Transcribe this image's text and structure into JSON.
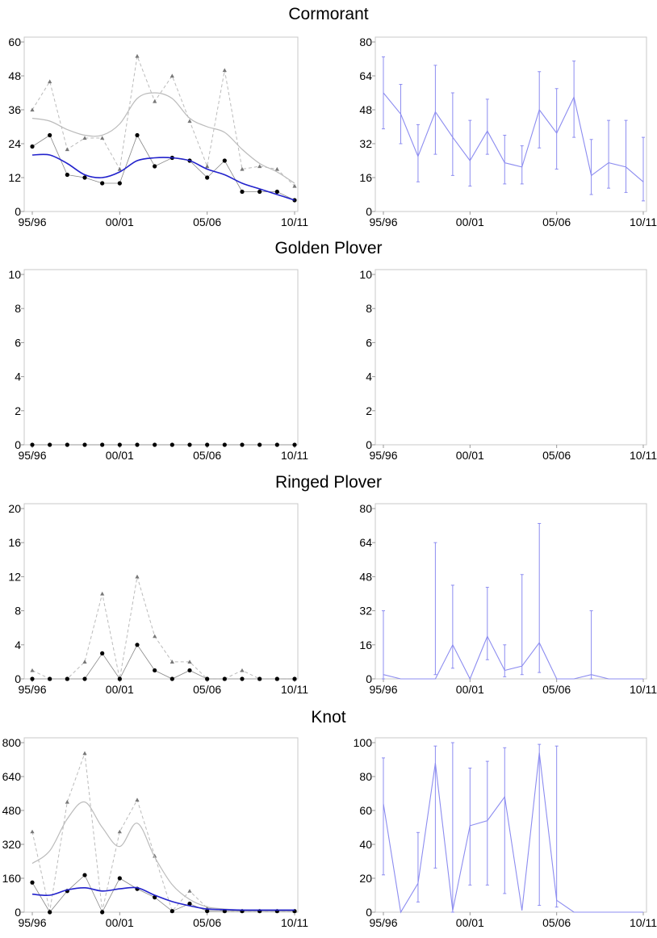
{
  "colors": {
    "black": "#000000",
    "grey": "#888888",
    "light_grey": "#bbbbbb",
    "blue": "#2222cc",
    "light_blue": "#8c8cf0",
    "axis": "#c8c8c8"
  },
  "x_tick_labels": [
    "95/96",
    "00/01",
    "05/06",
    "10/11"
  ],
  "species": [
    {
      "title": "Cormorant"
    },
    {
      "title": "Golden Plover"
    },
    {
      "title": "Ringed Plover"
    },
    {
      "title": "Knot"
    }
  ],
  "chart_data": [
    {
      "type": "scatter",
      "species": "Cormorant",
      "panel": "left",
      "x": [
        "95/96",
        "96/97",
        "97/98",
        "98/99",
        "99/00",
        "00/01",
        "01/02",
        "02/03",
        "03/04",
        "04/05",
        "05/06",
        "06/07",
        "07/08",
        "08/09",
        "09/10",
        "10/11"
      ],
      "ylim": [
        0,
        60
      ],
      "yticks": [
        0,
        12,
        24,
        36,
        48,
        60
      ],
      "xtick_labels": [
        "95/96",
        "00/01",
        "05/06",
        "10/11"
      ],
      "series": [
        {
          "values": [
            36,
            46,
            22,
            26,
            26,
            15,
            55,
            39,
            48,
            32,
            16,
            50,
            15,
            16,
            15,
            9
          ],
          "marker": "triangle",
          "style": "dashed-grey"
        },
        {
          "values": [
            23,
            27,
            13,
            12,
            10,
            10,
            27,
            16,
            19,
            18,
            12,
            18,
            7,
            7,
            7,
            4
          ],
          "marker": "dot",
          "style": "thin-black"
        },
        {
          "values": [
            33,
            32,
            29,
            27,
            27,
            31,
            40,
            42,
            40,
            33,
            30,
            28,
            22,
            17,
            14,
            10
          ],
          "marker": "none",
          "style": "smooth-grey"
        },
        {
          "values": [
            20,
            20,
            17,
            13,
            12,
            14,
            18,
            19,
            19,
            18,
            15,
            13,
            10,
            8,
            6,
            4
          ],
          "marker": "none",
          "style": "smooth-blue"
        }
      ]
    },
    {
      "type": "line",
      "species": "Cormorant",
      "panel": "right",
      "x": [
        "95/96",
        "96/97",
        "97/98",
        "98/99",
        "99/00",
        "00/01",
        "01/02",
        "02/03",
        "03/04",
        "04/05",
        "05/06",
        "06/07",
        "07/08",
        "08/09",
        "09/10",
        "10/11"
      ],
      "ylim": [
        0,
        80
      ],
      "yticks": [
        0,
        16,
        32,
        48,
        64,
        80
      ],
      "xtick_labels": [
        "95/96",
        "00/01",
        "05/06",
        "10/11"
      ],
      "series": [
        {
          "values": [
            56,
            46,
            26,
            47,
            35,
            24,
            38,
            23,
            21,
            48,
            37,
            54,
            17,
            23,
            21,
            14
          ],
          "lower": [
            39,
            32,
            14,
            27,
            17,
            12,
            27,
            13,
            13,
            30,
            20,
            35,
            8,
            11,
            9,
            5
          ],
          "upper": [
            73,
            60,
            41,
            69,
            56,
            43,
            53,
            36,
            31,
            66,
            58,
            71,
            34,
            43,
            43,
            35
          ]
        }
      ]
    },
    {
      "type": "scatter",
      "species": "Golden Plover",
      "panel": "left",
      "x": [
        "95/96",
        "96/97",
        "97/98",
        "98/99",
        "99/00",
        "00/01",
        "01/02",
        "02/03",
        "03/04",
        "04/05",
        "05/06",
        "06/07",
        "07/08",
        "08/09",
        "09/10",
        "10/11"
      ],
      "ylim": [
        0,
        10
      ],
      "yticks": [
        0,
        2,
        4,
        6,
        8,
        10
      ],
      "xtick_labels": [
        "95/96",
        "00/01",
        "05/06",
        "10/11"
      ],
      "series": [
        {
          "values": [
            0,
            0,
            0,
            0,
            0,
            0,
            0,
            0,
            0,
            0,
            0,
            0,
            0,
            0,
            0,
            0
          ],
          "marker": "dot",
          "style": "thin-black"
        }
      ]
    },
    {
      "type": "line",
      "species": "Golden Plover",
      "panel": "right",
      "x": [],
      "ylim": [
        0,
        10
      ],
      "yticks": [
        0,
        2,
        4,
        6,
        8,
        10
      ],
      "xtick_labels": [
        "95/96",
        "00/01",
        "05/06",
        "10/11"
      ],
      "series": []
    },
    {
      "type": "scatter",
      "species": "Ringed Plover",
      "panel": "left",
      "x": [
        "95/96",
        "96/97",
        "97/98",
        "98/99",
        "99/00",
        "00/01",
        "01/02",
        "02/03",
        "03/04",
        "04/05",
        "05/06",
        "06/07",
        "07/08",
        "08/09",
        "09/10",
        "10/11"
      ],
      "ylim": [
        0,
        20
      ],
      "yticks": [
        0,
        4,
        8,
        12,
        16,
        20
      ],
      "xtick_labels": [
        "95/96",
        "00/01",
        "05/06",
        "10/11"
      ],
      "series": [
        {
          "values": [
            1,
            0,
            0,
            2,
            10,
            0,
            12,
            5,
            2,
            2,
            0,
            0,
            1,
            0,
            0,
            0
          ],
          "marker": "triangle",
          "style": "dashed-grey"
        },
        {
          "values": [
            0,
            0,
            0,
            0,
            3,
            0,
            4,
            1,
            0,
            1,
            0,
            0,
            0,
            0,
            0,
            0
          ],
          "marker": "dot",
          "style": "thin-black"
        }
      ]
    },
    {
      "type": "line",
      "species": "Ringed Plover",
      "panel": "right",
      "x": [
        "95/96",
        "96/97",
        "97/98",
        "98/99",
        "99/00",
        "00/01",
        "01/02",
        "02/03",
        "03/04",
        "04/05",
        "05/06",
        "06/07",
        "07/08",
        "08/09",
        "09/10",
        "10/11"
      ],
      "ylim": [
        0,
        80
      ],
      "yticks": [
        0,
        16,
        32,
        48,
        64,
        80
      ],
      "xtick_labels": [
        "95/96",
        "00/01",
        "05/06",
        "10/11"
      ],
      "series": [
        {
          "values": [
            2,
            0,
            0,
            0,
            16,
            0,
            20,
            4,
            6,
            17,
            0,
            0,
            2,
            0,
            0,
            0
          ],
          "lower": [
            0,
            0,
            0,
            2,
            5,
            0,
            9,
            1,
            2,
            3,
            0,
            0,
            0,
            0,
            0,
            0
          ],
          "upper": [
            32,
            0,
            0,
            64,
            44,
            0,
            43,
            16,
            49,
            73,
            0,
            0,
            32,
            0,
            0,
            0
          ]
        }
      ]
    },
    {
      "type": "scatter",
      "species": "Knot",
      "panel": "left",
      "x": [
        "95/96",
        "96/97",
        "97/98",
        "98/99",
        "99/00",
        "00/01",
        "01/02",
        "02/03",
        "03/04",
        "04/05",
        "05/06",
        "06/07",
        "07/08",
        "08/09",
        "09/10",
        "10/11"
      ],
      "ylim": [
        0,
        800
      ],
      "yticks": [
        0,
        160,
        320,
        480,
        640,
        800
      ],
      "xtick_labels": [
        "95/96",
        "00/01",
        "05/06",
        "10/11"
      ],
      "series": [
        {
          "values": [
            380,
            5,
            520,
            750,
            5,
            380,
            530,
            265,
            5,
            100,
            20,
            5,
            5,
            5,
            5,
            5
          ],
          "marker": "triangle",
          "style": "dashed-grey"
        },
        {
          "values": [
            140,
            0,
            100,
            175,
            0,
            160,
            110,
            70,
            5,
            40,
            5,
            5,
            5,
            5,
            5,
            5
          ],
          "marker": "dot",
          "style": "thin-black"
        },
        {
          "values": [
            230,
            290,
            440,
            520,
            400,
            310,
            420,
            260,
            130,
            60,
            25,
            15,
            10,
            10,
            10,
            10
          ],
          "marker": "none",
          "style": "smooth-grey"
        },
        {
          "values": [
            85,
            80,
            105,
            115,
            100,
            110,
            115,
            80,
            50,
            30,
            15,
            12,
            10,
            10,
            10,
            10
          ],
          "marker": "none",
          "style": "smooth-blue"
        }
      ]
    },
    {
      "type": "line",
      "species": "Knot",
      "panel": "right",
      "x": [
        "95/96",
        "96/97",
        "97/98",
        "98/99",
        "99/00",
        "00/01",
        "01/02",
        "02/03",
        "03/04",
        "04/05",
        "05/06",
        "06/07",
        "07/08",
        "08/09",
        "09/10",
        "10/11"
      ],
      "ylim": [
        0,
        100
      ],
      "yticks": [
        0,
        20,
        40,
        60,
        80,
        100
      ],
      "xtick_labels": [
        "95/96",
        "00/01",
        "05/06",
        "10/11"
      ],
      "series": [
        {
          "values": [
            64,
            0,
            17,
            88,
            1,
            51,
            54,
            68,
            1,
            94,
            7,
            0,
            0,
            0,
            0,
            0
          ],
          "lower": [
            22,
            0,
            6,
            26,
            0,
            16,
            16,
            11,
            0,
            4,
            3,
            0,
            0,
            0,
            0,
            0
          ],
          "upper": [
            91,
            0,
            47,
            98,
            100,
            85,
            89,
            97,
            0,
            99,
            98,
            0,
            0,
            0,
            0,
            0
          ]
        }
      ]
    }
  ]
}
